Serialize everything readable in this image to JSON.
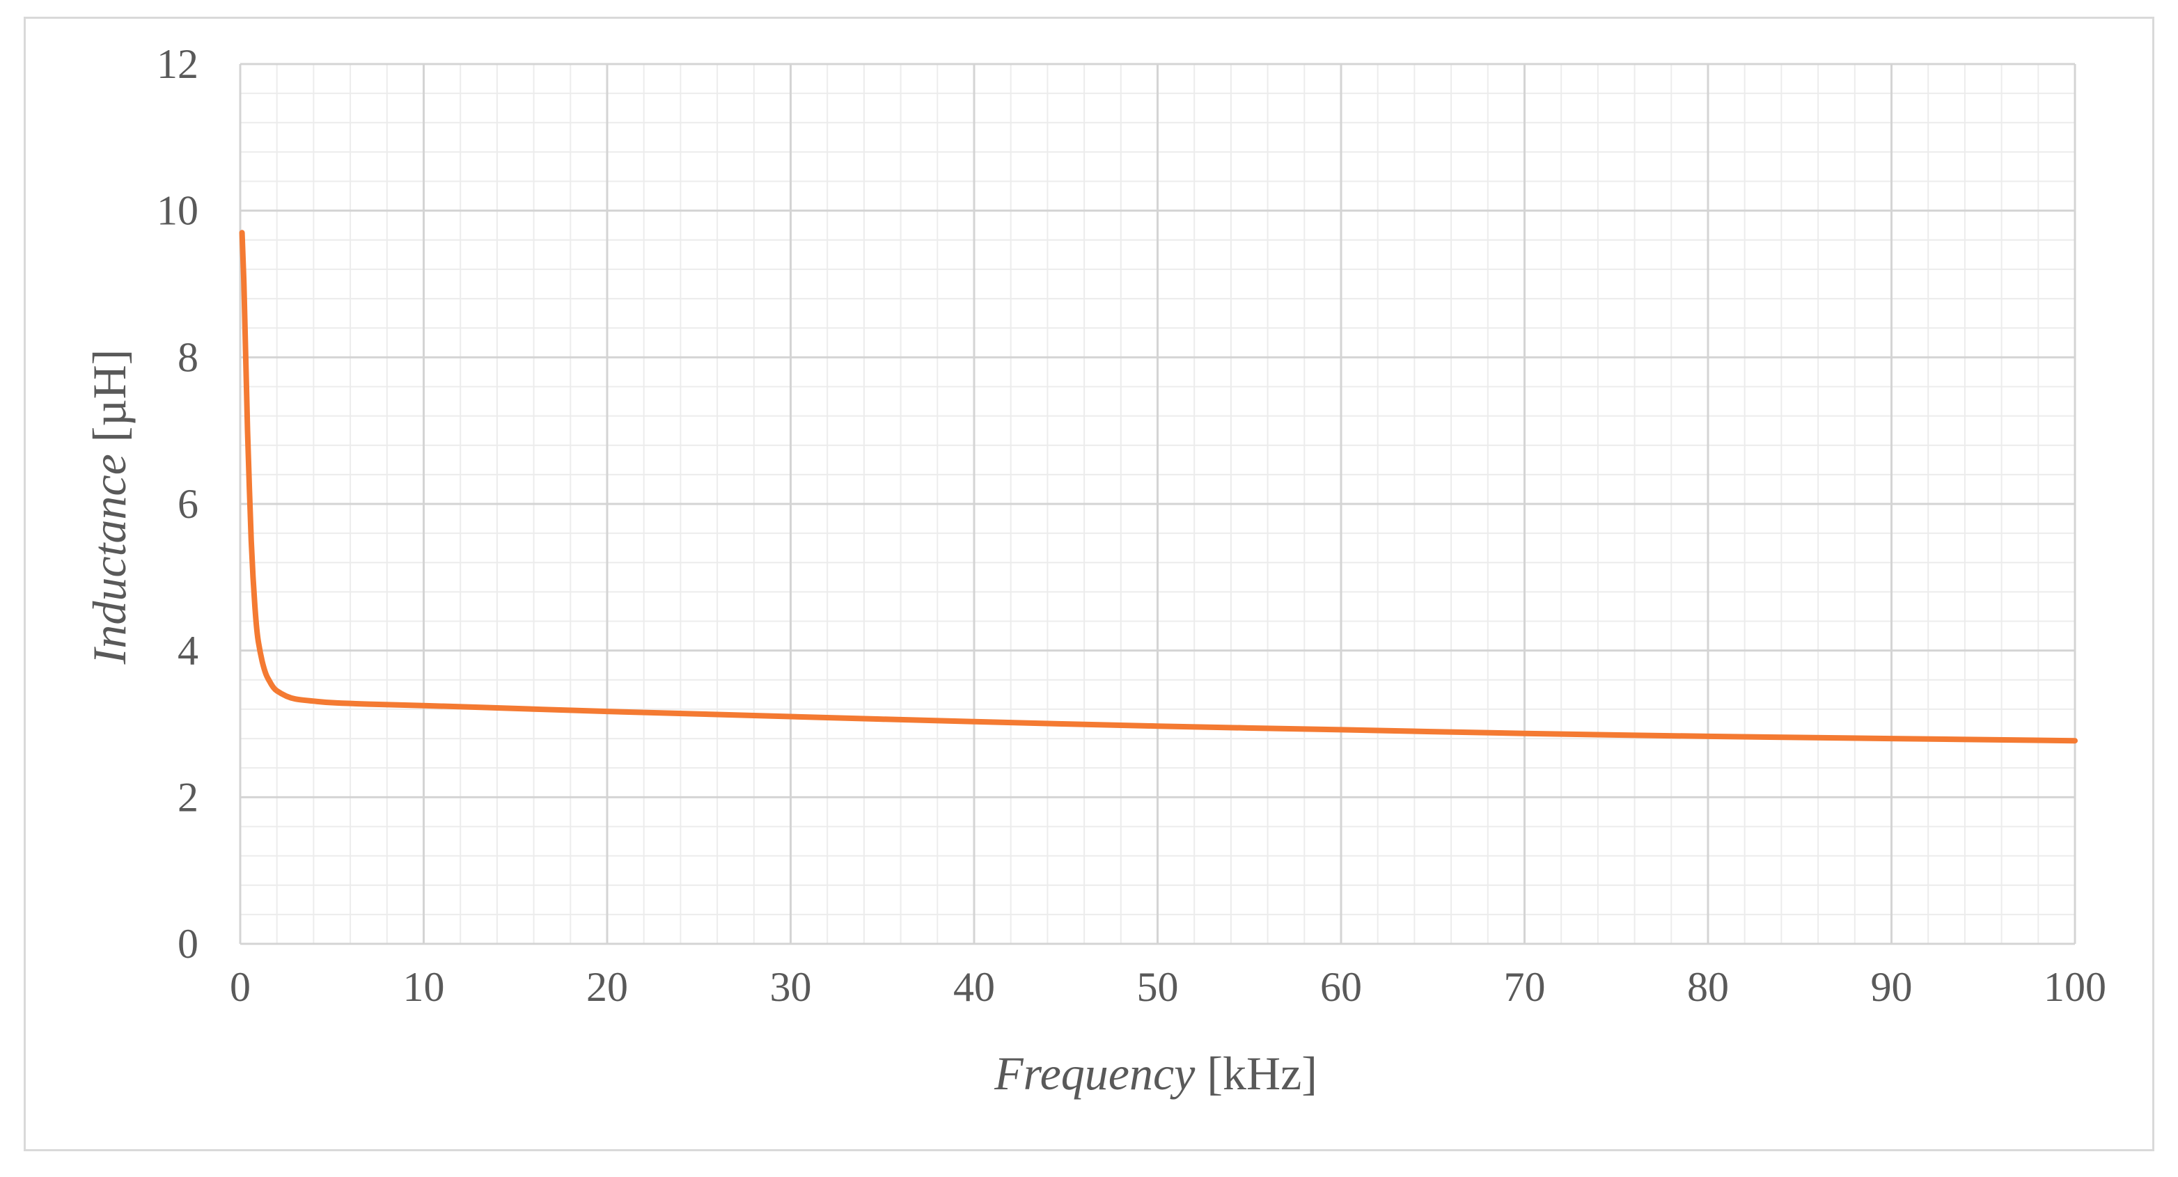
{
  "chart_data": {
    "type": "line",
    "title": "",
    "xlabel": "Frequency [kHz]",
    "xlabel_italic_part": "Frequency",
    "xlabel_unit_part": " [kHz]",
    "ylabel": "Inductance [µH]",
    "ylabel_italic_part": "Inductance",
    "ylabel_unit_part": " [µH]",
    "xlim": [
      0,
      100
    ],
    "ylim": [
      0,
      12
    ],
    "x_ticks": [
      "0",
      "10",
      "20",
      "30",
      "40",
      "50",
      "60",
      "70",
      "80",
      "90",
      "100"
    ],
    "y_ticks": [
      "0",
      "2",
      "4",
      "6",
      "8",
      "10",
      "12"
    ],
    "grid": true,
    "minor_grid": true,
    "legend": "none",
    "series": [
      {
        "color": "#F47A32",
        "x": [
          0.1,
          0.2,
          0.3,
          0.4,
          0.5,
          0.6,
          0.7,
          0.8,
          0.9,
          1.0,
          1.2,
          1.4,
          1.6,
          1.8,
          2.0,
          2.5,
          3.0,
          4.0,
          5.0,
          7.0,
          10,
          15,
          20,
          30,
          40,
          50,
          60,
          70,
          80,
          90,
          100
        ],
        "y": [
          9.7,
          9.0,
          8.0,
          7.0,
          6.2,
          5.5,
          5.0,
          4.6,
          4.3,
          4.1,
          3.85,
          3.68,
          3.58,
          3.5,
          3.45,
          3.38,
          3.34,
          3.31,
          3.29,
          3.27,
          3.25,
          3.21,
          3.17,
          3.1,
          3.03,
          2.97,
          2.92,
          2.87,
          2.83,
          2.8,
          2.77
        ]
      }
    ]
  }
}
